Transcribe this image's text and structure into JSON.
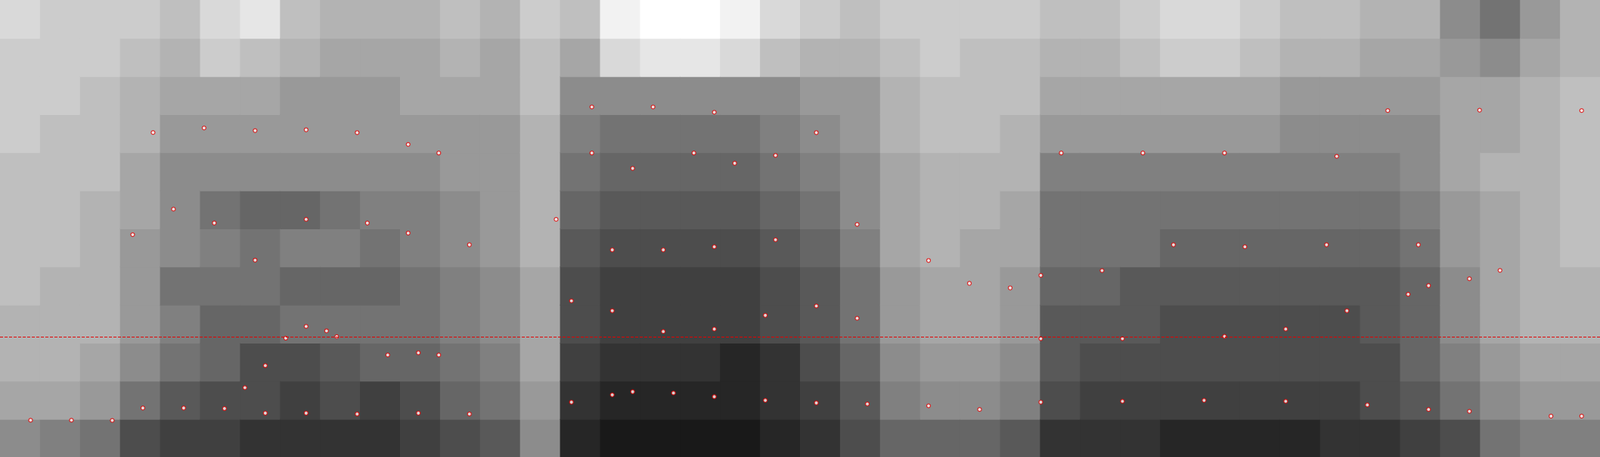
{
  "chart_data": {
    "type": "spectrogram",
    "xlim": [
      0,
      1.568
    ],
    "ylim": [
      0,
      5000
    ],
    "tick_labels": false,
    "grid": false,
    "spectrogram": {
      "zlim": [
        0,
        100
      ],
      "values": [
        [
          45,
          35,
          30,
          30,
          25,
          25,
          25,
          25,
          20,
          20,
          20,
          15
        ],
        [
          50,
          35,
          30,
          30,
          30,
          25,
          25,
          25,
          25,
          20,
          20,
          20
        ],
        [
          55,
          40,
          35,
          30,
          30,
          30,
          30,
          25,
          25,
          25,
          20,
          20
        ],
        [
          70,
          55,
          45,
          40,
          40,
          40,
          35,
          35,
          30,
          30,
          25,
          20
        ],
        [
          75,
          65,
          55,
          50,
          55,
          45,
          45,
          45,
          40,
          35,
          30,
          25
        ],
        [
          75,
          70,
          60,
          60,
          55,
          50,
          55,
          45,
          40,
          35,
          20,
          15
        ],
        [
          80,
          70,
          70,
          60,
          55,
          55,
          60,
          45,
          40,
          35,
          25,
          10
        ],
        [
          80,
          75,
          70,
          55,
          60,
          50,
          60,
          45,
          40,
          40,
          30,
          25
        ],
        [
          80,
          70,
          65,
          55,
          60,
          50,
          55,
          45,
          40,
          40,
          35,
          30
        ],
        [
          80,
          75,
          60,
          55,
          60,
          55,
          50,
          45,
          40,
          40,
          35,
          30
        ],
        [
          75,
          70,
          60,
          55,
          55,
          50,
          50,
          45,
          40,
          35,
          35,
          30
        ],
        [
          70,
          60,
          55,
          50,
          50,
          45,
          45,
          40,
          40,
          35,
          30,
          25
        ],
        [
          65,
          55,
          50,
          45,
          45,
          40,
          40,
          40,
          40,
          35,
          35,
          30
        ],
        [
          45,
          40,
          35,
          35,
          35,
          30,
          30,
          30,
          30,
          25,
          25,
          20
        ],
        [
          85,
          80,
          75,
          70,
          70,
          65,
          60,
          55,
          50,
          45,
          35,
          25
        ],
        [
          90,
          85,
          80,
          75,
          75,
          70,
          65,
          60,
          55,
          45,
          15,
          5
        ],
        [
          90,
          85,
          80,
          75,
          75,
          70,
          65,
          60,
          55,
          45,
          10,
          0
        ],
        [
          90,
          85,
          80,
          75,
          75,
          70,
          65,
          60,
          55,
          45,
          10,
          0
        ],
        [
          90,
          85,
          85,
          75,
          75,
          70,
          65,
          60,
          55,
          45,
          15,
          5
        ],
        [
          85,
          80,
          80,
          70,
          70,
          65,
          60,
          55,
          50,
          45,
          25,
          15
        ],
        [
          80,
          75,
          70,
          65,
          65,
          60,
          55,
          50,
          45,
          40,
          30,
          20
        ],
        [
          70,
          65,
          60,
          55,
          55,
          50,
          45,
          45,
          40,
          40,
          30,
          25
        ],
        [
          60,
          50,
          45,
          40,
          40,
          35,
          35,
          35,
          30,
          30,
          25,
          20
        ],
        [
          60,
          45,
          40,
          35,
          35,
          30,
          30,
          30,
          25,
          25,
          20,
          20
        ],
        [
          60,
          45,
          40,
          35,
          35,
          35,
          30,
          30,
          25,
          25,
          25,
          20
        ],
        [
          65,
          50,
          45,
          40,
          40,
          35,
          35,
          30,
          30,
          25,
          25,
          20
        ],
        [
          80,
          70,
          65,
          65,
          60,
          55,
          55,
          50,
          40,
          35,
          30,
          25
        ],
        [
          80,
          75,
          70,
          65,
          60,
          55,
          55,
          50,
          40,
          35,
          30,
          25
        ],
        [
          80,
          75,
          70,
          65,
          65,
          55,
          55,
          50,
          40,
          35,
          25,
          20
        ],
        [
          85,
          75,
          70,
          70,
          65,
          60,
          55,
          50,
          40,
          35,
          20,
          15
        ],
        [
          85,
          75,
          70,
          70,
          65,
          60,
          55,
          50,
          40,
          35,
          20,
          15
        ],
        [
          85,
          75,
          70,
          70,
          65,
          60,
          55,
          50,
          40,
          35,
          25,
          20
        ],
        [
          85,
          75,
          70,
          70,
          65,
          60,
          55,
          50,
          45,
          40,
          30,
          25
        ],
        [
          80,
          75,
          70,
          70,
          65,
          60,
          55,
          50,
          45,
          40,
          30,
          25
        ],
        [
          80,
          70,
          70,
          65,
          65,
          60,
          55,
          50,
          45,
          40,
          35,
          30
        ],
        [
          75,
          65,
          60,
          60,
          60,
          55,
          50,
          45,
          45,
          40,
          35,
          30
        ],
        [
          70,
          55,
          50,
          45,
          45,
          40,
          40,
          35,
          35,
          35,
          40,
          45
        ],
        [
          55,
          45,
          40,
          35,
          35,
          35,
          35,
          30,
          35,
          35,
          45,
          55
        ],
        [
          50,
          40,
          35,
          30,
          30,
          30,
          30,
          30,
          30,
          30,
          35,
          40
        ],
        [
          50,
          40,
          35,
          30,
          30,
          25,
          25,
          25,
          25,
          25,
          30,
          30
        ]
      ]
    },
    "series": [
      {
        "type": "scatter",
        "marker": "circle",
        "color": "#e00000",
        "x": [
          0.03,
          0.07,
          0.11,
          0.14,
          0.18,
          0.22,
          0.26,
          0.3,
          0.35,
          0.41,
          0.46,
          0.56,
          0.6,
          0.62,
          0.66,
          0.7,
          0.75,
          0.8,
          0.85,
          0.91,
          0.96,
          1.02,
          1.1,
          1.18,
          1.26,
          1.34,
          1.4,
          1.44,
          1.52,
          1.55
        ],
        "y": [
          402,
          402,
          400,
          536,
          536,
          530,
          480,
          480,
          470,
          480,
          470,
          600,
          680,
          714,
          700,
          660,
          620,
          592,
          580,
          560,
          520,
          600,
          610,
          620,
          610,
          570,
          520,
          500,
          447,
          447
        ]
      },
      {
        "type": "scatter",
        "marker": "circle",
        "color": "#e00000",
        "x": [
          0.24,
          0.26,
          0.28,
          0.3,
          0.32,
          0.33,
          0.38,
          0.41,
          0.43,
          0.56,
          0.6,
          0.65,
          0.7,
          0.75,
          0.8,
          0.84,
          1.02,
          1.1,
          1.2,
          1.26,
          1.32,
          1.38,
          1.4,
          1.44,
          1.47
        ],
        "y": [
          759,
          1000,
          1300,
          1429,
          1380,
          1317,
          1116,
          1140,
          1116,
          1708,
          1600,
          1373,
          1400,
          1550,
          1652,
          1518,
          1295,
          1295,
          1320,
          1400,
          1600,
          1780,
          1875,
          1950,
          2042
        ]
      },
      {
        "type": "scatter",
        "marker": "circle",
        "color": "#e00000",
        "x": [
          0.13,
          0.17,
          0.21,
          0.25,
          0.3,
          0.36,
          0.4,
          0.46,
          0.545,
          0.6,
          0.65,
          0.7,
          0.76,
          0.84,
          0.91,
          0.95,
          0.99,
          1.02,
          1.08,
          1.15,
          1.22,
          1.3,
          1.39
        ],
        "y": [
          2433,
          2712,
          2560,
          2154,
          2600,
          2560,
          2450,
          2322,
          2600,
          2266,
          2266,
          2300,
          2377,
          2545,
          2150,
          1900,
          1850,
          1987,
          2040,
          2322,
          2300,
          2322,
          2322
        ]
      },
      {
        "type": "scatter",
        "marker": "circle",
        "color": "#e00000",
        "x": [
          0.15,
          0.2,
          0.25,
          0.3,
          0.35,
          0.4,
          0.43,
          0.58,
          0.62,
          0.68,
          0.72,
          0.76,
          0.8,
          1.04,
          1.12,
          1.2,
          1.31
        ],
        "y": [
          3550,
          3600,
          3571,
          3580,
          3549,
          3420,
          3326,
          3326,
          3158,
          3326,
          3214,
          3300,
          3549,
          3326,
          3326,
          3326,
          3290
        ]
      },
      {
        "type": "scatter",
        "marker": "circle",
        "color": "#e00000",
        "x": [
          0.58,
          0.64,
          0.7,
          1.36,
          1.45,
          1.55
        ],
        "y": [
          3830,
          3830,
          3772,
          3790,
          3795,
          3790
        ]
      }
    ],
    "reference_line": {
      "y": 1317,
      "color": "#e00000",
      "line_style": "dashed"
    }
  }
}
